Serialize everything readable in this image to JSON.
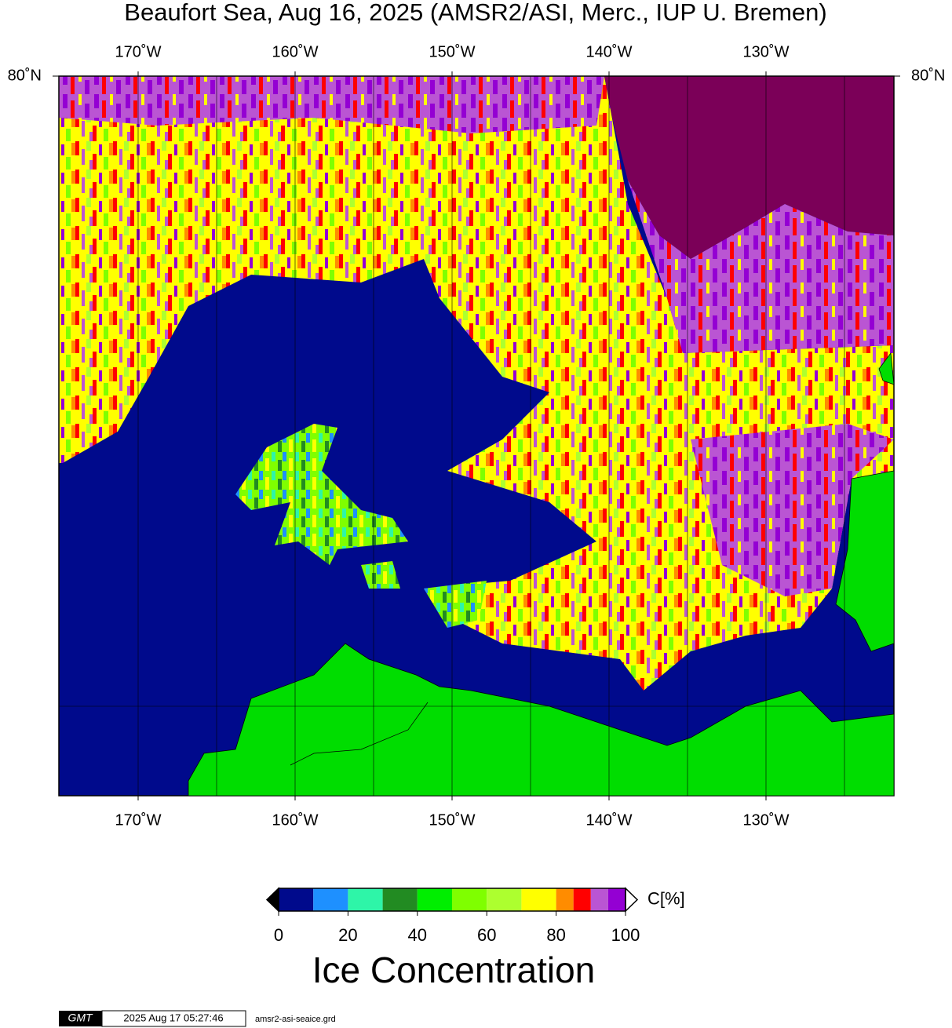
{
  "chart_data": {
    "type": "map",
    "title": "Beaufort Sea, Aug 16, 2025 (AMSR2/ASI, Merc., IUP U. Bremen)",
    "projection": "mercator",
    "xlim": [
      -175.05,
      -121.85
    ],
    "ylim": [
      68,
      80
    ],
    "xticks": [
      {
        "value": -170,
        "label": "170˚W"
      },
      {
        "value": -160,
        "label": "160˚W"
      },
      {
        "value": -150,
        "label": "150˚W"
      },
      {
        "value": -140,
        "label": "140˚W"
      },
      {
        "value": -130,
        "label": "130˚W"
      }
    ],
    "yticks": [
      {
        "value": 80,
        "label": "80˚N"
      }
    ],
    "colorbar": {
      "label": "C[%]",
      "title": "Ice Concentration",
      "range": [
        0,
        100
      ],
      "levels": [
        0,
        10,
        20,
        30,
        40,
        50,
        60,
        70,
        80,
        85,
        90,
        95,
        100
      ],
      "colors": [
        "#000a8c",
        "#1e90ff",
        "#2ef5a8",
        "#228b22",
        "#00ee00",
        "#7fff00",
        "#adff2f",
        "#ffff00",
        "#ff8c00",
        "#ff0000",
        "#ba55d3",
        "#9400d3"
      ],
      "ticks": [
        0,
        20,
        40,
        60,
        80,
        100
      ]
    }
  },
  "footer": {
    "logo": "GMT",
    "timestamp": "2025 Aug 17 05:27:46",
    "file": "amsr2-asi-seaice.grd"
  }
}
